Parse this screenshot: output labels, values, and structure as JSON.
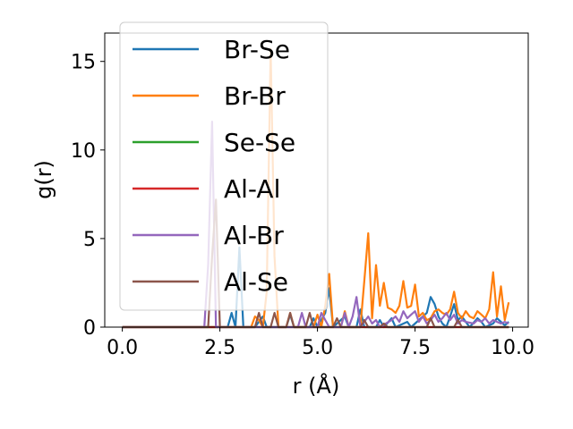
{
  "chart_data": {
    "type": "line",
    "title": "",
    "xlabel": "r (Å)",
    "ylabel": "g(r)",
    "xlim": [
      -0.45,
      10.4
    ],
    "ylim": [
      0,
      16.6
    ],
    "xticks": [
      "0.0",
      "2.5",
      "5.0",
      "7.5",
      "10.0"
    ],
    "xtick_values": [
      0,
      2.5,
      5,
      7.5,
      10
    ],
    "yticks": [
      "0",
      "5",
      "10",
      "15"
    ],
    "ytick_values": [
      0,
      5,
      10,
      15
    ],
    "legend_position": "upper-left",
    "grid": false,
    "series": [
      {
        "name": "Br-Se",
        "color": "#1f77b4",
        "points": [
          [
            0,
            0
          ],
          [
            2.7,
            0
          ],
          [
            2.8,
            0.8
          ],
          [
            2.9,
            0
          ],
          [
            3.0,
            4.5
          ],
          [
            3.1,
            0
          ],
          [
            3.4,
            0
          ],
          [
            3.6,
            0.6
          ],
          [
            3.7,
            0
          ],
          [
            4.2,
            0
          ],
          [
            4.3,
            0.7
          ],
          [
            4.4,
            0
          ],
          [
            4.8,
            0
          ],
          [
            4.9,
            0.5
          ],
          [
            5.0,
            0
          ],
          [
            5.2,
            0.8
          ],
          [
            5.3,
            2.2
          ],
          [
            5.4,
            0
          ],
          [
            5.7,
            0.6
          ],
          [
            5.8,
            0
          ],
          [
            6.0,
            0
          ],
          [
            6.1,
            1.0
          ],
          [
            6.2,
            0
          ],
          [
            6.5,
            0
          ],
          [
            6.6,
            0.4
          ],
          [
            6.7,
            0
          ],
          [
            6.9,
            0.5
          ],
          [
            7.0,
            0
          ],
          [
            7.3,
            0.3
          ],
          [
            7.4,
            0
          ],
          [
            7.8,
            0.8
          ],
          [
            7.9,
            1.7
          ],
          [
            8.0,
            1.3
          ],
          [
            8.1,
            0.6
          ],
          [
            8.2,
            0.2
          ],
          [
            8.3,
            0
          ],
          [
            8.4,
            0.6
          ],
          [
            8.5,
            1.3
          ],
          [
            8.6,
            0.4
          ],
          [
            8.7,
            0.6
          ],
          [
            8.8,
            0.3
          ],
          [
            8.9,
            0
          ],
          [
            9.1,
            0.5
          ],
          [
            9.2,
            0.3
          ],
          [
            9.3,
            0
          ],
          [
            9.5,
            0.2
          ],
          [
            9.6,
            0.5
          ],
          [
            9.7,
            0.3
          ],
          [
            9.8,
            0.1
          ],
          [
            9.9,
            0.3
          ]
        ]
      },
      {
        "name": "Br-Br",
        "color": "#ff7f0e",
        "points": [
          [
            0,
            0
          ],
          [
            3.3,
            0
          ],
          [
            3.4,
            0.6
          ],
          [
            3.5,
            0.4
          ],
          [
            3.6,
            0
          ],
          [
            3.7,
            2.0
          ],
          [
            3.8,
            15.7
          ],
          [
            3.9,
            4.0
          ],
          [
            4.0,
            0
          ],
          [
            4.2,
            0
          ],
          [
            4.3,
            0.8
          ],
          [
            4.4,
            0
          ],
          [
            4.9,
            0
          ],
          [
            5.0,
            0.7
          ],
          [
            5.1,
            0
          ],
          [
            5.2,
            1.2
          ],
          [
            5.3,
            3.0
          ],
          [
            5.4,
            0
          ],
          [
            5.6,
            0
          ],
          [
            5.7,
            0.9
          ],
          [
            5.8,
            0
          ],
          [
            6.1,
            0
          ],
          [
            6.2,
            2.6
          ],
          [
            6.3,
            5.3
          ],
          [
            6.4,
            0.5
          ],
          [
            6.5,
            3.5
          ],
          [
            6.6,
            1.2
          ],
          [
            6.7,
            2.5
          ],
          [
            6.8,
            1.1
          ],
          [
            6.9,
            1.0
          ],
          [
            7.0,
            0.8
          ],
          [
            7.1,
            1.2
          ],
          [
            7.2,
            2.6
          ],
          [
            7.3,
            1.1
          ],
          [
            7.4,
            1.2
          ],
          [
            7.5,
            2.4
          ],
          [
            7.6,
            0.6
          ],
          [
            7.7,
            0.8
          ],
          [
            7.8,
            0.4
          ],
          [
            7.9,
            0.5
          ],
          [
            8.0,
            0.9
          ],
          [
            8.1,
            1.0
          ],
          [
            8.2,
            0.8
          ],
          [
            8.3,
            0.7
          ],
          [
            8.4,
            1.0
          ],
          [
            8.5,
            2.0
          ],
          [
            8.6,
            0.8
          ],
          [
            8.7,
            0.5
          ],
          [
            8.8,
            0.9
          ],
          [
            8.9,
            0.6
          ],
          [
            9.0,
            0.5
          ],
          [
            9.1,
            0.9
          ],
          [
            9.2,
            0.7
          ],
          [
            9.3,
            0.5
          ],
          [
            9.4,
            1.0
          ],
          [
            9.5,
            3.1
          ],
          [
            9.6,
            0.6
          ],
          [
            9.7,
            2.3
          ],
          [
            9.8,
            0.4
          ],
          [
            9.9,
            1.4
          ]
        ]
      },
      {
        "name": "Se-Se",
        "color": "#2ca02c",
        "points": [
          [
            0,
            0
          ],
          [
            9.9,
            0
          ]
        ]
      },
      {
        "name": "Al-Al",
        "color": "#d62728",
        "points": [
          [
            0,
            0
          ],
          [
            9.9,
            0
          ]
        ]
      },
      {
        "name": "Al-Br",
        "color": "#9467bd",
        "points": [
          [
            0,
            0
          ],
          [
            2.1,
            0
          ],
          [
            2.2,
            3.5
          ],
          [
            2.3,
            11.6
          ],
          [
            2.4,
            0
          ],
          [
            4.5,
            0
          ],
          [
            4.6,
            0.8
          ],
          [
            4.7,
            0
          ],
          [
            5.0,
            0
          ],
          [
            5.1,
            0.8
          ],
          [
            5.2,
            0.4
          ],
          [
            5.3,
            0
          ],
          [
            5.6,
            0
          ],
          [
            5.7,
            0.8
          ],
          [
            5.8,
            0
          ],
          [
            5.9,
            0.6
          ],
          [
            6.0,
            1.7
          ],
          [
            6.1,
            0
          ],
          [
            6.3,
            0.6
          ],
          [
            6.4,
            0.2
          ],
          [
            6.5,
            0.4
          ],
          [
            6.6,
            0
          ],
          [
            6.9,
            0.4
          ],
          [
            7.0,
            0.6
          ],
          [
            7.1,
            0.3
          ],
          [
            7.2,
            0.9
          ],
          [
            7.3,
            0.5
          ],
          [
            7.4,
            0.7
          ],
          [
            7.5,
            0.9
          ],
          [
            7.6,
            0.3
          ],
          [
            7.7,
            0.6
          ],
          [
            7.8,
            0.2
          ],
          [
            7.9,
            0.4
          ],
          [
            8.0,
            0.7
          ],
          [
            8.1,
            0.3
          ],
          [
            8.2,
            0.5
          ],
          [
            8.3,
            0.8
          ],
          [
            8.4,
            0.4
          ],
          [
            8.5,
            0.7
          ],
          [
            8.6,
            0.2
          ],
          [
            8.7,
            0.4
          ],
          [
            8.8,
            0.3
          ],
          [
            9.0,
            0.2
          ],
          [
            9.1,
            0.4
          ],
          [
            9.2,
            0.3
          ],
          [
            9.3,
            0.5
          ],
          [
            9.4,
            0.2
          ],
          [
            9.5,
            0.4
          ],
          [
            9.6,
            0.3
          ],
          [
            9.7,
            0.2
          ],
          [
            9.8,
            0.3
          ],
          [
            9.9,
            0.2
          ]
        ]
      },
      {
        "name": "Al-Se",
        "color": "#8c564b",
        "points": [
          [
            0,
            0
          ],
          [
            2.2,
            0
          ],
          [
            2.3,
            4.0
          ],
          [
            2.4,
            7.2
          ],
          [
            2.5,
            0
          ],
          [
            3.4,
            0
          ],
          [
            3.5,
            0.8
          ],
          [
            3.6,
            0
          ],
          [
            3.8,
            0
          ],
          [
            3.9,
            0.8
          ],
          [
            4.0,
            0
          ],
          [
            4.2,
            0
          ],
          [
            4.3,
            0.8
          ],
          [
            4.4,
            0
          ],
          [
            4.7,
            0
          ],
          [
            4.8,
            0.8
          ],
          [
            4.9,
            0
          ],
          [
            5.4,
            0
          ],
          [
            5.5,
            0.5
          ],
          [
            5.6,
            0
          ],
          [
            6.1,
            0
          ],
          [
            6.2,
            0.4
          ],
          [
            6.3,
            0
          ],
          [
            6.6,
            0
          ],
          [
            6.7,
            0.2
          ],
          [
            6.8,
            0
          ],
          [
            7.8,
            0
          ],
          [
            7.9,
            0.5
          ],
          [
            8.0,
            0
          ],
          [
            8.5,
            0
          ],
          [
            8.6,
            0.4
          ],
          [
            8.7,
            0
          ],
          [
            9.9,
            0
          ]
        ]
      }
    ]
  }
}
